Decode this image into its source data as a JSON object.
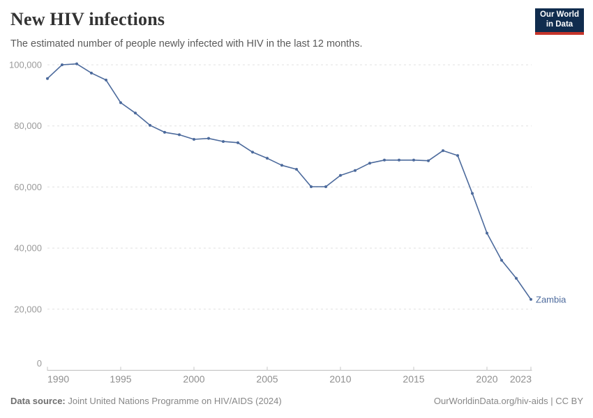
{
  "header": {
    "title": "New HIV infections",
    "subtitle": "The estimated number of people newly infected with HIV in the last 12 months."
  },
  "logo": {
    "line1": "Our World",
    "line2": "in Data",
    "bg_color": "#102c4e",
    "accent_color": "#c5352b"
  },
  "chart_data": {
    "type": "line",
    "title": "New HIV infections",
    "xlabel": "",
    "ylabel": "",
    "x": [
      1990,
      1991,
      1992,
      1993,
      1994,
      1995,
      1996,
      1997,
      1998,
      1999,
      2000,
      2001,
      2002,
      2003,
      2004,
      2005,
      2006,
      2007,
      2008,
      2009,
      2010,
      2011,
      2012,
      2013,
      2014,
      2015,
      2016,
      2017,
      2018,
      2019,
      2020,
      2021,
      2022,
      2023
    ],
    "series": [
      {
        "name": "Zambia",
        "color": "#4c6a9c",
        "values": [
          95500,
          100000,
          100300,
          97300,
          95000,
          87600,
          84200,
          80200,
          77900,
          77100,
          75600,
          75900,
          74900,
          74500,
          71400,
          69400,
          67100,
          65800,
          60100,
          60100,
          63800,
          65400,
          67800,
          68800,
          68800,
          68800,
          68600,
          71900,
          70300,
          57900,
          44900,
          36000,
          30100,
          23200
        ]
      }
    ],
    "entity_label": "Zambia",
    "ylim": [
      0,
      100000
    ],
    "yticks": [
      0,
      20000,
      40000,
      60000,
      80000,
      100000
    ],
    "ytick_labels": [
      "0",
      "20,000",
      "40,000",
      "60,000",
      "80,000",
      "100,000"
    ],
    "xticks": [
      1990,
      1995,
      2000,
      2005,
      2010,
      2015,
      2020,
      2023
    ],
    "grid": "horizontal-dashed",
    "legend": "entity-label-right-of-line"
  },
  "footer": {
    "source_label": "Data source:",
    "source_text": " Joint United Nations Programme on HIV/AIDS (2024)",
    "credit": "OurWorldinData.org/hiv-aids | CC BY"
  },
  "colors": {
    "line": "#4c6a9c",
    "grid": "#e0e0e0",
    "axis": "#bdbdbd",
    "tick": "#c4c4c4",
    "ytick_label": "#9a9a9a",
    "xtick_label": "#8f8f8f",
    "title": "#333333",
    "subtitle": "#5a5a5a",
    "footer": "#878787"
  }
}
